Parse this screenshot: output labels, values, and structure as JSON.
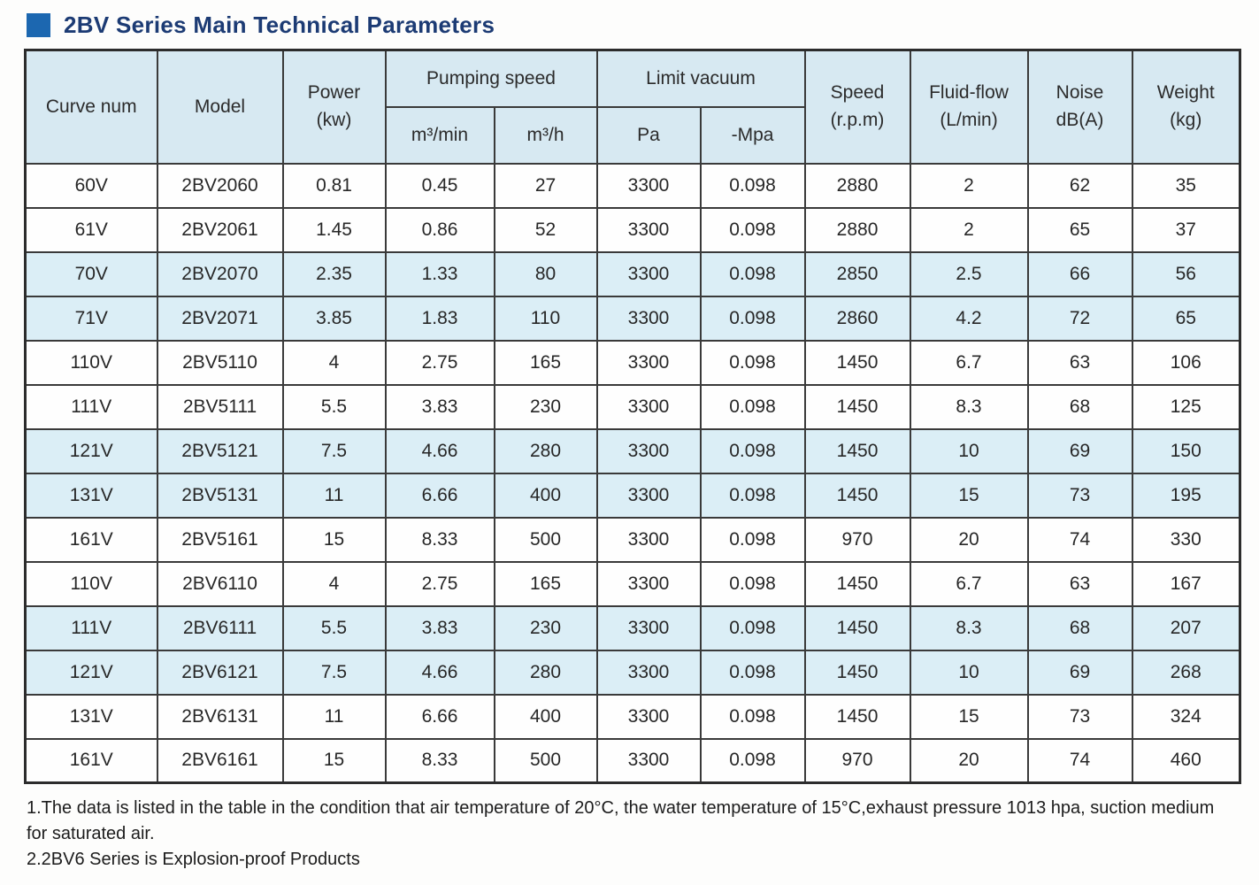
{
  "page": {
    "title": "2BV Series Main Technical Parameters"
  },
  "colors": {
    "title_text": "#1c3b74",
    "title_square": "#1c67b0",
    "header_bg": "#d7e9f2",
    "shaded_row_bg": "#dbeef6",
    "border": "#3a3a3a",
    "cell_text": "#272727"
  },
  "table": {
    "headers": {
      "curve_num": "Curve num",
      "model": "Model",
      "power_line1": "Power",
      "power_line2": "(kw)",
      "pumping_speed": "Pumping speed",
      "pumping_m3min": "m³/min",
      "pumping_m3h": "m³/h",
      "limit_vacuum": "Limit vacuum",
      "vacuum_pa": "Pa",
      "vacuum_mpa": "-Mpa",
      "speed_line1": "Speed",
      "speed_line2": "(r.p.m)",
      "fluid_line1": "Fluid-flow",
      "fluid_line2": "(L/min)",
      "noise_line1": "Noise",
      "noise_line2": "dB(A)",
      "weight_line1": "Weight",
      "weight_line2": "(kg)"
    },
    "rows": [
      {
        "shaded": false,
        "cells": [
          "60V",
          "2BV2060",
          "0.81",
          "0.45",
          "27",
          "3300",
          "0.098",
          "2880",
          "2",
          "62",
          "35"
        ]
      },
      {
        "shaded": false,
        "cells": [
          "61V",
          "2BV2061",
          "1.45",
          "0.86",
          "52",
          "3300",
          "0.098",
          "2880",
          "2",
          "65",
          "37"
        ]
      },
      {
        "shaded": true,
        "cells": [
          "70V",
          "2BV2070",
          "2.35",
          "1.33",
          "80",
          "3300",
          "0.098",
          "2850",
          "2.5",
          "66",
          "56"
        ]
      },
      {
        "shaded": true,
        "cells": [
          "71V",
          "2BV2071",
          "3.85",
          "1.83",
          "110",
          "3300",
          "0.098",
          "2860",
          "4.2",
          "72",
          "65"
        ]
      },
      {
        "shaded": false,
        "cells": [
          "110V",
          "2BV5110",
          "4",
          "2.75",
          "165",
          "3300",
          "0.098",
          "1450",
          "6.7",
          "63",
          "106"
        ]
      },
      {
        "shaded": false,
        "cells": [
          "111V",
          "2BV5111",
          "5.5",
          "3.83",
          "230",
          "3300",
          "0.098",
          "1450",
          "8.3",
          "68",
          "125"
        ]
      },
      {
        "shaded": true,
        "cells": [
          "121V",
          "2BV5121",
          "7.5",
          "4.66",
          "280",
          "3300",
          "0.098",
          "1450",
          "10",
          "69",
          "150"
        ]
      },
      {
        "shaded": true,
        "cells": [
          "131V",
          "2BV5131",
          "11",
          "6.66",
          "400",
          "3300",
          "0.098",
          "1450",
          "15",
          "73",
          "195"
        ]
      },
      {
        "shaded": false,
        "cells": [
          "161V",
          "2BV5161",
          "15",
          "8.33",
          "500",
          "3300",
          "0.098",
          "970",
          "20",
          "74",
          "330"
        ]
      },
      {
        "shaded": false,
        "cells": [
          "110V",
          "2BV6110",
          "4",
          "2.75",
          "165",
          "3300",
          "0.098",
          "1450",
          "6.7",
          "63",
          "167"
        ]
      },
      {
        "shaded": true,
        "cells": [
          "111V",
          "2BV6111",
          "5.5",
          "3.83",
          "230",
          "3300",
          "0.098",
          "1450",
          "8.3",
          "68",
          "207"
        ]
      },
      {
        "shaded": true,
        "cells": [
          "121V",
          "2BV6121",
          "7.5",
          "4.66",
          "280",
          "3300",
          "0.098",
          "1450",
          "10",
          "69",
          "268"
        ]
      },
      {
        "shaded": false,
        "cells": [
          "131V",
          "2BV6131",
          "11",
          "6.66",
          "400",
          "3300",
          "0.098",
          "1450",
          "15",
          "73",
          "324"
        ]
      },
      {
        "shaded": false,
        "cells": [
          "161V",
          "2BV6161",
          "15",
          "8.33",
          "500",
          "3300",
          "0.098",
          "970",
          "20",
          "74",
          "460"
        ]
      }
    ]
  },
  "notes": {
    "line1": "1.The data is listed in the table in the condition that air temperature of 20°C, the water temperature of 15°C,exhaust pressure 1013 hpa, suction medium for saturated air.",
    "line2": "2.2BV6 Series is Explosion-proof Products"
  }
}
